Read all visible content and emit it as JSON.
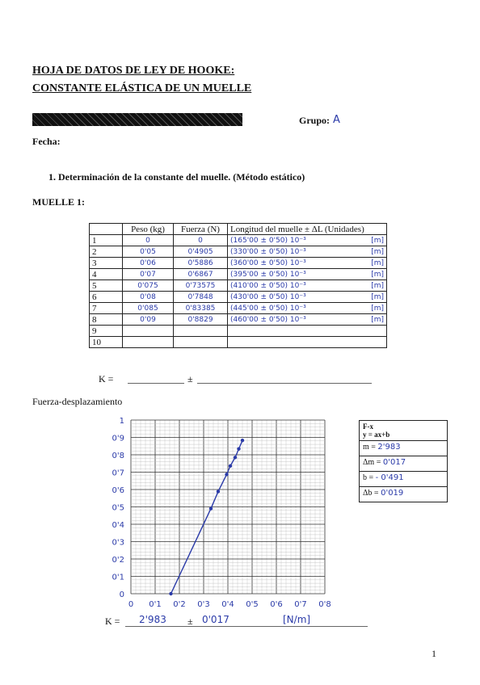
{
  "header": {
    "title_line1": "HOJA DE DATOS DE LEY DE HOOKE:",
    "title_line2": "CONSTANTE ELÁSTICA DE UN MUELLE",
    "grupo_label": "Grupo:",
    "grupo_value": "A",
    "fecha_label": "Fecha:"
  },
  "section": {
    "heading": "1. Determinación de la constante del muelle. (Método estático)",
    "muelle_label": "MUELLE 1:"
  },
  "table": {
    "headers": [
      "",
      "Peso (kg)",
      "Fuerza (N)",
      "Longitud del muelle ± ΔL (Unidades)"
    ],
    "rows": [
      {
        "n": "1",
        "peso": "0",
        "fuerza": "0",
        "longitud": "(165'00 ± 0'50) 10⁻³",
        "unidad": "[m]"
      },
      {
        "n": "2",
        "peso": "0'05",
        "fuerza": "0'4905",
        "longitud": "(330'00 ± 0'50) 10⁻³",
        "unidad": "[m]"
      },
      {
        "n": "3",
        "peso": "0'06",
        "fuerza": "0'5886",
        "longitud": "(360'00 ± 0'50) 10⁻³",
        "unidad": "[m]"
      },
      {
        "n": "4",
        "peso": "0'07",
        "fuerza": "0'6867",
        "longitud": "(395'00 ± 0'50) 10⁻³",
        "unidad": "[m]"
      },
      {
        "n": "5",
        "peso": "0'075",
        "fuerza": "0'73575",
        "longitud": "(410'00 ± 0'50) 10⁻³",
        "unidad": "[m]"
      },
      {
        "n": "6",
        "peso": "0'08",
        "fuerza": "0'7848",
        "longitud": "(430'00 ± 0'50) 10⁻³",
        "unidad": "[m]"
      },
      {
        "n": "7",
        "peso": "0'085",
        "fuerza": "0'83385",
        "longitud": "(445'00 ± 0'50) 10⁻³",
        "unidad": "[m]"
      },
      {
        "n": "8",
        "peso": "0'09",
        "fuerza": "0'8829",
        "longitud": "(460'00 ± 0'50) 10⁻³",
        "unidad": "[m]"
      },
      {
        "n": "9",
        "peso": "",
        "fuerza": "",
        "longitud": "",
        "unidad": ""
      },
      {
        "n": "10",
        "peso": "",
        "fuerza": "",
        "longitud": "",
        "unidad": ""
      }
    ]
  },
  "k_blank": {
    "label": "K =",
    "pm": "±"
  },
  "graph_label": "Fuerza-desplazamiento",
  "fit_box": {
    "header1": "F-x",
    "header2": "y = ax+b",
    "m_label": "m =",
    "m_value": "2'983",
    "dm_label": "Δm =",
    "dm_value": "0'017",
    "b_label": "b =",
    "b_value": "- 0'491",
    "db_label": "Δb =",
    "db_value": "0'019"
  },
  "k_result": {
    "label": "K =",
    "value": "2'983",
    "pm": "±",
    "error": "0'017",
    "unit": "[N/m]"
  },
  "page_number": "1",
  "chart_data": {
    "type": "line",
    "title": "",
    "xlabel": "",
    "ylabel": "",
    "xlim": [
      0,
      0.8
    ],
    "ylim": [
      0,
      1
    ],
    "x_ticks": [
      "0",
      "0'1",
      "0'2",
      "0'3",
      "0'4",
      "0'5",
      "0'6",
      "0'7",
      "0'8"
    ],
    "y_ticks": [
      "0",
      "0'1",
      "0'2",
      "0'3",
      "0'4",
      "0'5",
      "0'6",
      "0'7",
      "0'8",
      "0'9",
      "1"
    ],
    "points": [
      [
        0.165,
        0
      ],
      [
        0.33,
        0.4905
      ],
      [
        0.36,
        0.5886
      ],
      [
        0.395,
        0.6867
      ],
      [
        0.41,
        0.73575
      ],
      [
        0.43,
        0.7848
      ],
      [
        0.445,
        0.83385
      ],
      [
        0.46,
        0.8829
      ]
    ],
    "grid": true,
    "color": "#2a3aa8"
  }
}
